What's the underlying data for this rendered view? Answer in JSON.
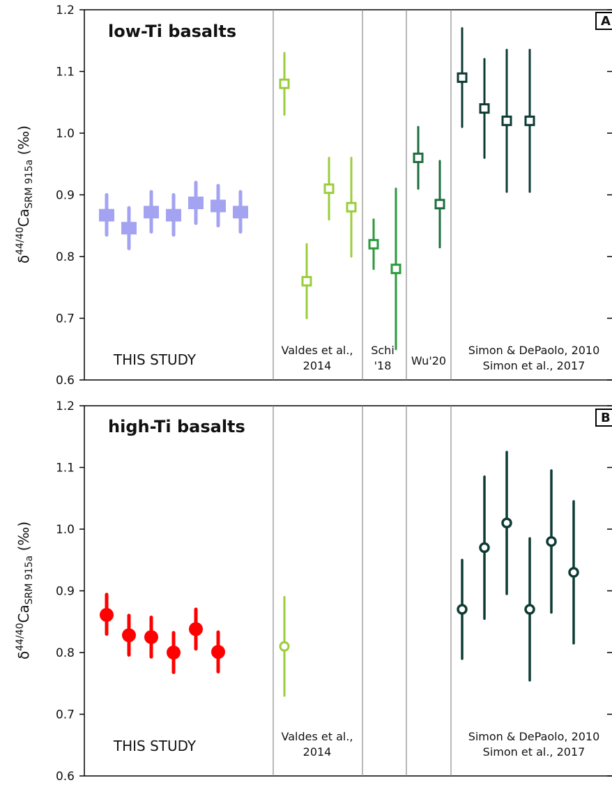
{
  "chart_data": [
    {
      "type": "scatter",
      "panel_letter": "A",
      "title": "low-Ti basalts",
      "ylabel": {
        "delta": "δ",
        "sup": "44/40",
        "ca": "Ca",
        "sub": "SRM 915a",
        "unit": " (‰)"
      },
      "ylim": [
        0.6,
        1.2
      ],
      "yticks": [
        "0.6",
        "0.7",
        "0.8",
        "0.9",
        "1.0",
        "1.1",
        "1.2"
      ],
      "groups": [
        {
          "label": [
            "THIS STUDY"
          ],
          "points": [
            {
              "y": 0.867,
              "lo": 0.835,
              "hi": 0.9
            },
            {
              "y": 0.846,
              "lo": 0.813,
              "hi": 0.879
            },
            {
              "y": 0.872,
              "lo": 0.84,
              "hi": 0.905
            },
            {
              "y": 0.867,
              "lo": 0.835,
              "hi": 0.9
            },
            {
              "y": 0.887,
              "lo": 0.854,
              "hi": 0.92
            },
            {
              "y": 0.882,
              "lo": 0.85,
              "hi": 0.915
            },
            {
              "y": 0.872,
              "lo": 0.84,
              "hi": 0.905
            }
          ]
        },
        {
          "label": [
            "Valdes et al.,",
            "2014"
          ],
          "points": [
            {
              "y": 1.08,
              "lo": 1.03,
              "hi": 1.13
            },
            {
              "y": 0.76,
              "lo": 0.7,
              "hi": 0.82
            },
            {
              "y": 0.91,
              "lo": 0.86,
              "hi": 0.96
            },
            {
              "y": 0.88,
              "lo": 0.8,
              "hi": 0.96
            }
          ]
        },
        {
          "label": [
            "Schi",
            "'18"
          ],
          "points": [
            {
              "y": 0.82,
              "lo": 0.78,
              "hi": 0.86
            },
            {
              "y": 0.78,
              "lo": 0.65,
              "hi": 0.91
            }
          ]
        },
        {
          "label": [
            "Wu'20"
          ],
          "points": [
            {
              "y": 0.96,
              "lo": 0.91,
              "hi": 1.01
            },
            {
              "y": 0.885,
              "lo": 0.815,
              "hi": 0.955
            }
          ]
        },
        {
          "label": [
            "Simon & DePaolo, 2010",
            "Simon et al., 2017"
          ],
          "points": [
            {
              "y": 1.09,
              "lo": 1.01,
              "hi": 1.17
            },
            {
              "y": 1.04,
              "lo": 0.96,
              "hi": 1.12
            },
            {
              "y": 1.02,
              "lo": 0.905,
              "hi": 1.135
            },
            {
              "y": 1.02,
              "lo": 0.905,
              "hi": 1.135
            }
          ]
        }
      ]
    },
    {
      "type": "scatter",
      "panel_letter": "B",
      "title": "high-Ti basalts",
      "ylabel": {
        "delta": "δ",
        "sup": "44/40",
        "ca": "Ca",
        "sub": "SRM 915a",
        "unit": " (‰)"
      },
      "ylim": [
        0.6,
        1.2
      ],
      "yticks": [
        "0.6",
        "0.7",
        "0.8",
        "0.9",
        "1.0",
        "1.1",
        "1.2"
      ],
      "groups": [
        {
          "label": [
            "THIS STUDY"
          ],
          "points": [
            {
              "y": 0.861,
              "lo": 0.83,
              "hi": 0.894
            },
            {
              "y": 0.828,
              "lo": 0.796,
              "hi": 0.86
            },
            {
              "y": 0.825,
              "lo": 0.793,
              "hi": 0.857
            },
            {
              "y": 0.8,
              "lo": 0.768,
              "hi": 0.832
            },
            {
              "y": 0.838,
              "lo": 0.806,
              "hi": 0.87
            },
            {
              "y": 0.801,
              "lo": 0.769,
              "hi": 0.833
            }
          ]
        },
        {
          "label": [
            "Valdes et al.,",
            "2014"
          ],
          "points": [
            {
              "y": 0.81,
              "lo": 0.73,
              "hi": 0.89
            }
          ]
        },
        {
          "label": [],
          "points": []
        },
        {
          "label": [],
          "points": []
        },
        {
          "label": [
            "Simon & DePaolo, 2010",
            "Simon et al., 2017"
          ],
          "points": [
            {
              "y": 0.87,
              "lo": 0.79,
              "hi": 0.95
            },
            {
              "y": 0.97,
              "lo": 0.855,
              "hi": 1.085
            },
            {
              "y": 1.01,
              "lo": 0.895,
              "hi": 1.125
            },
            {
              "y": 0.87,
              "lo": 0.755,
              "hi": 0.985
            },
            {
              "y": 0.98,
              "lo": 0.865,
              "hi": 1.095
            },
            {
              "y": 0.93,
              "lo": 0.815,
              "hi": 1.045
            }
          ]
        }
      ]
    }
  ]
}
